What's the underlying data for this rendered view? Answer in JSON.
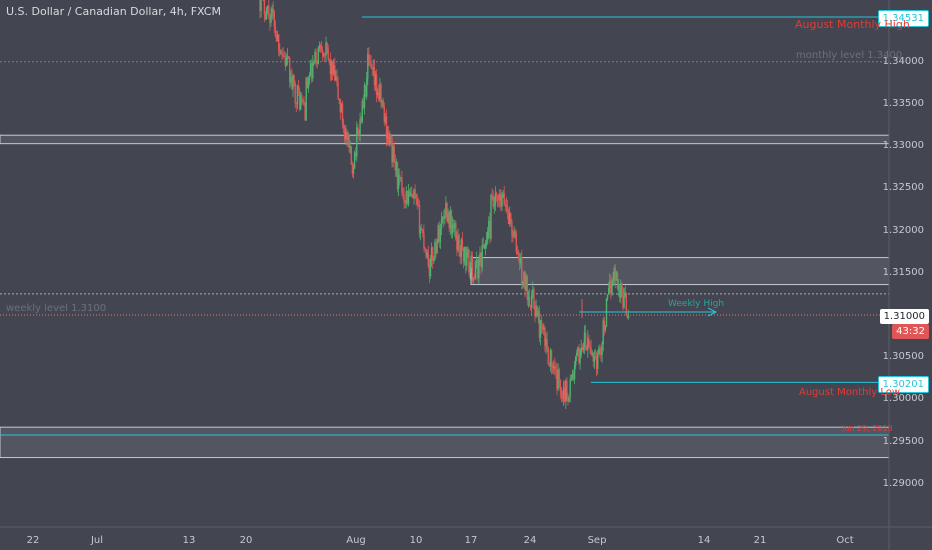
{
  "title": "U.S. Dollar / Canadian Dollar, 4h, FXCM",
  "price_axis": [
    "1.34000",
    "1.33500",
    "1.33000",
    "1.32500",
    "1.32000",
    "1.31500",
    "1.30500",
    "1.30000",
    "1.29500",
    "1.29000"
  ],
  "time_axis": [
    "22",
    "Jul",
    "13",
    "20",
    "Aug",
    "10",
    "17",
    "24",
    "Sep",
    "14",
    "21",
    "Oct"
  ],
  "badges": {
    "high": "1.34531",
    "current": "1.31000",
    "countdown": "43:32",
    "low": "1.30201"
  },
  "annotations": {
    "august_monthly_high": "August Monthly High",
    "monthly_level": "monthly level 1.3400",
    "weekly_level": "weekly level 1.3100",
    "weekly_high": "Weekly High",
    "august_monthly_low": "August Monthly Low",
    "zone_label": "Jun 29, 2018"
  },
  "colors": {
    "background": "#434651",
    "bull": "#4fb26f",
    "bear": "#e05656",
    "accent_cyan": "#26c6da",
    "annotation_red": "#e53935",
    "weekly_high_green": "#26a69a"
  },
  "chart_data": {
    "type": "candlestick",
    "title": "U.S. Dollar / Canadian Dollar, 4h, FXCM",
    "ylim": [
      1.2853,
      1.3485
    ],
    "horizontal_levels": [
      1.34531,
      1.34,
      1.3125,
      1.31,
      1.30201
    ],
    "zones": [
      [
        1.3303,
        1.3313
      ],
      [
        1.3136,
        1.3168
      ],
      [
        1.2931,
        1.2967
      ]
    ],
    "trend_path": [
      [
        1.3475,
        1.3448
      ],
      [
        1.3436,
        1.3383
      ],
      [
        1.3375,
        1.3342
      ],
      [
        1.3368,
        1.3424
      ],
      [
        1.3425,
        1.3371
      ],
      [
        1.3366,
        1.3272
      ],
      [
        1.3278,
        1.3382
      ],
      [
        1.3395,
        1.3348
      ],
      [
        1.334,
        1.3258
      ],
      [
        1.3254,
        1.323
      ],
      [
        1.3238,
        1.3161
      ],
      [
        1.3156,
        1.3224
      ],
      [
        1.323,
        1.3178
      ],
      [
        1.318,
        1.3147
      ],
      [
        1.3149,
        1.3208
      ],
      [
        1.3229,
        1.3234
      ],
      [
        1.323,
        1.3152
      ],
      [
        1.3145,
        1.3105
      ],
      [
        1.3095,
        1.304
      ],
      [
        1.303,
        1.3005
      ],
      [
        1.301,
        1.307
      ],
      [
        1.3068,
        1.3044
      ],
      [
        1.305,
        1.316
      ],
      [
        1.315,
        1.31
      ]
    ]
  }
}
